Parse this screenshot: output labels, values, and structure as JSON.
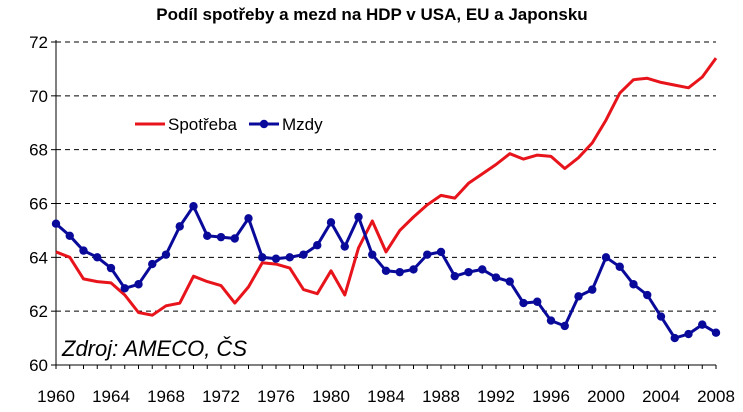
{
  "chart_data": {
    "type": "line",
    "title": "Podíl spotřeby a mezd na HDP v USA, EU a Japonsku",
    "source": "Zdroj: AMECO, ČS",
    "xlim": [
      1960,
      2008
    ],
    "ylim": [
      60,
      72
    ],
    "x_ticks": [
      1960,
      1964,
      1968,
      1972,
      1976,
      1980,
      1984,
      1988,
      1992,
      1996,
      2000,
      2004,
      2008
    ],
    "y_ticks": [
      60,
      62,
      64,
      66,
      68,
      70,
      72
    ],
    "grid": "horizontal dashed",
    "legend_position": "top-left",
    "x": [
      1960,
      1961,
      1962,
      1963,
      1964,
      1965,
      1966,
      1967,
      1968,
      1969,
      1970,
      1971,
      1972,
      1973,
      1974,
      1975,
      1976,
      1977,
      1978,
      1979,
      1980,
      1981,
      1982,
      1983,
      1984,
      1985,
      1986,
      1987,
      1988,
      1989,
      1990,
      1991,
      1992,
      1993,
      1994,
      1995,
      1996,
      1997,
      1998,
      1999,
      2000,
      2001,
      2002,
      2003,
      2004,
      2005,
      2006,
      2007,
      2008
    ],
    "series": [
      {
        "name": "Spotřeba",
        "color": "#e8141b",
        "marker": "none",
        "values": [
          64.2,
          64.0,
          63.2,
          63.1,
          63.05,
          62.6,
          61.95,
          61.85,
          62.2,
          62.3,
          63.3,
          63.1,
          62.95,
          62.3,
          62.9,
          63.8,
          63.75,
          63.6,
          62.8,
          62.65,
          63.5,
          62.6,
          64.35,
          65.35,
          64.2,
          65.0,
          65.5,
          65.95,
          66.3,
          66.2,
          66.75,
          67.1,
          67.45,
          67.85,
          67.65,
          67.8,
          67.75,
          67.3,
          67.7,
          68.25,
          69.1,
          70.1,
          70.6,
          70.65,
          70.5,
          70.4,
          70.3,
          70.7,
          71.4
        ]
      },
      {
        "name": "Mzdy",
        "color": "#0a0a9a",
        "marker": "circle",
        "values": [
          65.25,
          64.8,
          64.25,
          64.0,
          63.6,
          62.85,
          63.0,
          63.75,
          64.1,
          65.15,
          65.9,
          64.8,
          64.75,
          64.7,
          65.45,
          64.0,
          63.95,
          64.0,
          64.1,
          64.45,
          65.3,
          64.4,
          65.5,
          64.1,
          63.5,
          63.45,
          63.55,
          64.1,
          64.2,
          63.3,
          63.45,
          63.55,
          63.25,
          63.1,
          62.3,
          62.35,
          61.65,
          61.45,
          62.55,
          62.8,
          64.0,
          63.65,
          63.0,
          62.6,
          61.8,
          61.0,
          61.15,
          61.5,
          61.2
        ]
      }
    ]
  }
}
